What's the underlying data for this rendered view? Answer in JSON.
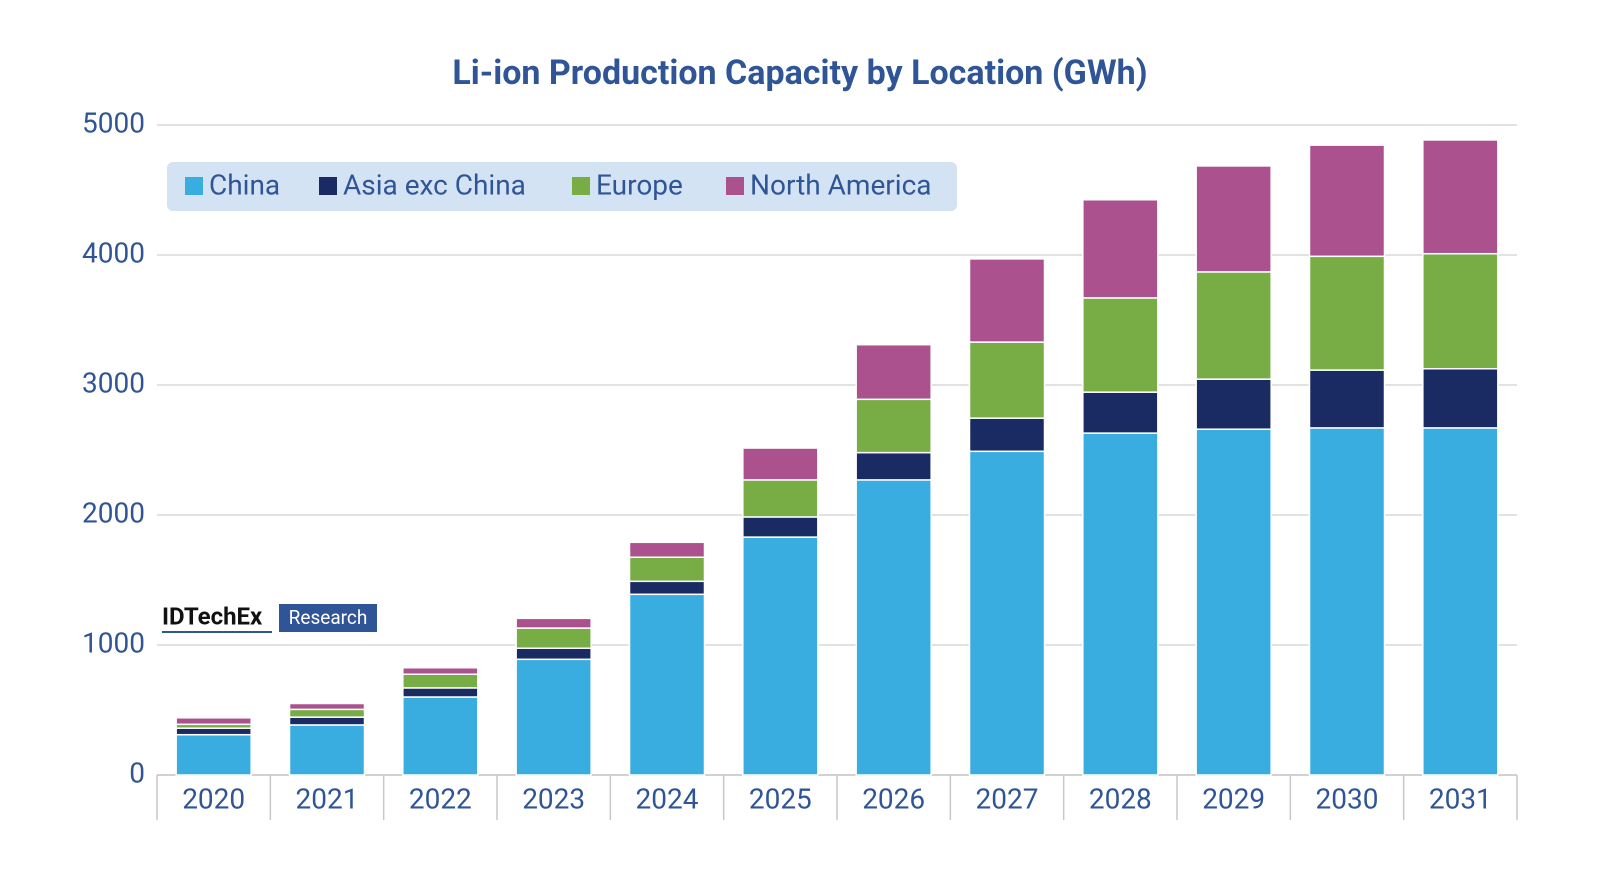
{
  "chart_data": {
    "type": "stacked_bar",
    "title": "Li-ion Production Capacity by Location (GWh)",
    "categories": [
      "2020",
      "2021",
      "2022",
      "2023",
      "2024",
      "2025",
      "2026",
      "2027",
      "2028",
      "2029",
      "2030",
      "2031"
    ],
    "series": [
      {
        "name": "China",
        "color": "#3aade0",
        "values": [
          310,
          385,
          600,
          890,
          1390,
          1830,
          2270,
          2490,
          2630,
          2660,
          2670,
          2670
        ]
      },
      {
        "name": "Asia exc China",
        "color": "#1a2b63",
        "values": [
          50,
          60,
          70,
          85,
          100,
          155,
          210,
          255,
          315,
          385,
          445,
          455
        ]
      },
      {
        "name": "Europe",
        "color": "#78ac44",
        "values": [
          30,
          60,
          105,
          155,
          185,
          285,
          410,
          585,
          725,
          825,
          875,
          885
        ]
      },
      {
        "name": "North America",
        "color": "#ab518e",
        "values": [
          50,
          45,
          50,
          75,
          115,
          245,
          420,
          640,
          755,
          815,
          855,
          875
        ]
      }
    ],
    "ylim": [
      0,
      5000
    ],
    "yticks": [
      0,
      1000,
      2000,
      3000,
      4000,
      5000
    ],
    "grid": true,
    "legend": "top-left"
  },
  "logo": {
    "name": "IDTechEx",
    "tag": "Research"
  }
}
